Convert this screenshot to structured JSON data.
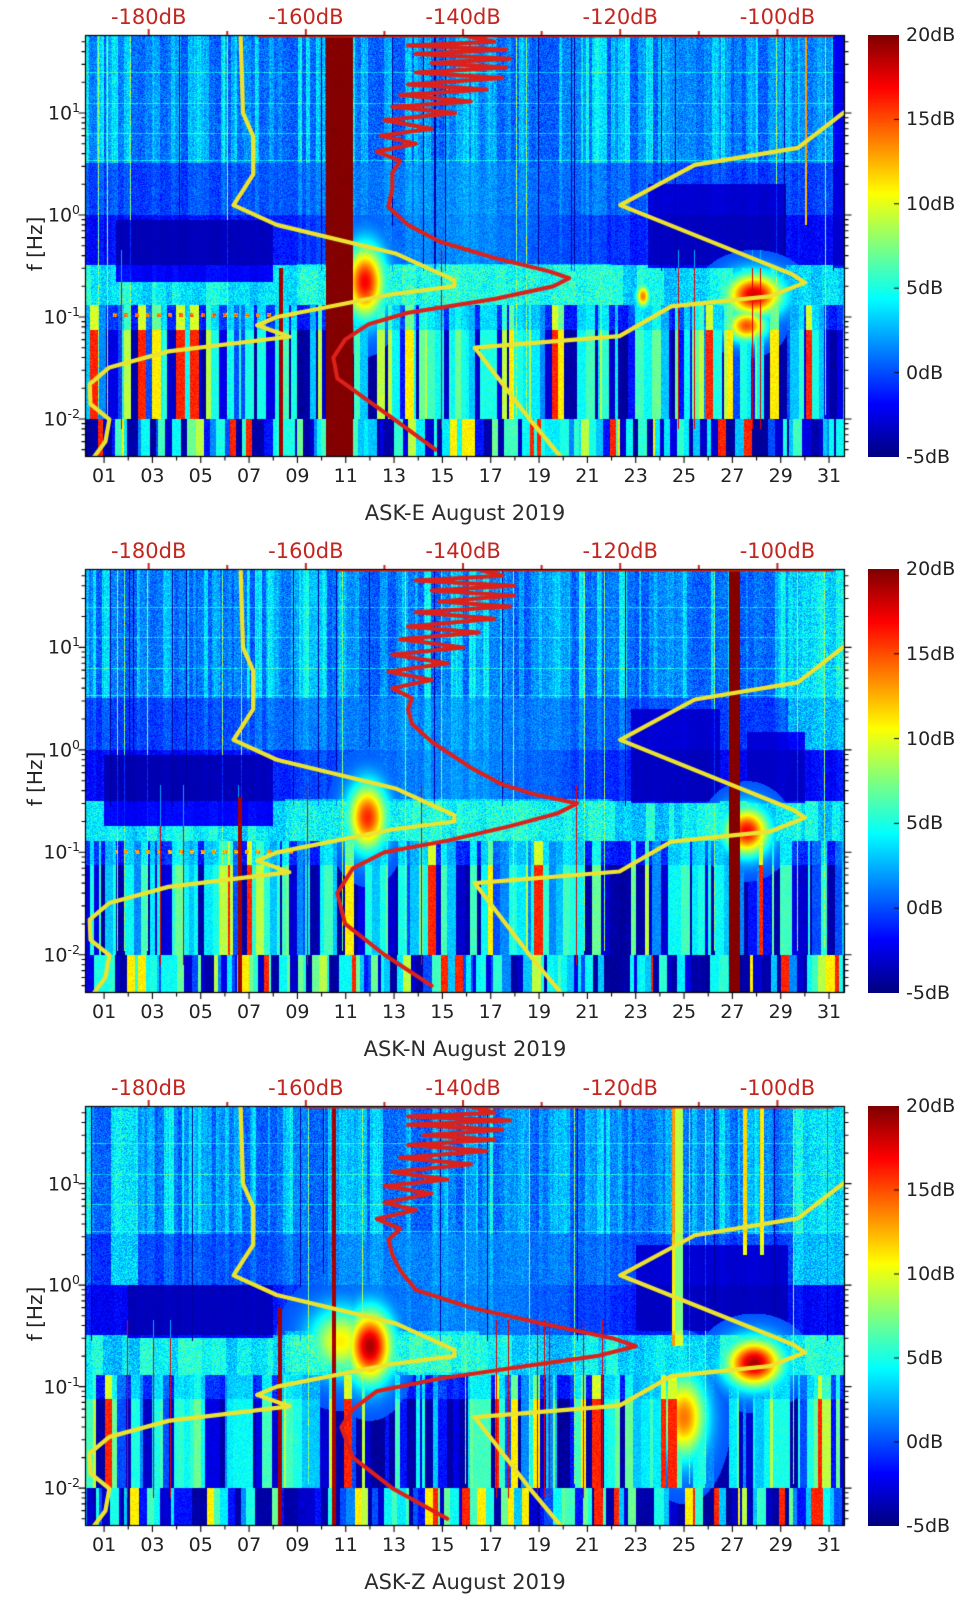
{
  "chart_data": {
    "type": "heatmap",
    "description": "Three seismic PSD spectrograms (spectrogram of power relative to noise model, jet colormap) for station channels ASK-E, ASK-N, ASK-Z during August 2019, with Peterson NLNM/NHNM reference noise models (yellow) and station mode spectrum (red) plotted against a secondary red dB axis on top.",
    "x_axis": {
      "tick_labels": [
        "01",
        "03",
        "05",
        "07",
        "09",
        "11",
        "13",
        "15",
        "17",
        "19",
        "21",
        "23",
        "25",
        "27",
        "29",
        "31"
      ],
      "tick_days": [
        1,
        3,
        5,
        7,
        9,
        11,
        13,
        15,
        17,
        19,
        21,
        23,
        25,
        27,
        29,
        31
      ],
      "range_days": [
        0.21,
        31.66
      ]
    },
    "y_axis": {
      "label": "f [Hz]",
      "decades": [
        {
          "mant": "10",
          "exp": "1",
          "e": 1
        },
        {
          "mant": "10",
          "exp": "0",
          "e": 0
        },
        {
          "mant": "10",
          "exp": "-1",
          "e": -1
        },
        {
          "mant": "10",
          "exp": "-2",
          "e": -2
        }
      ],
      "log_range": [
        -2.373,
        1.765
      ]
    },
    "top_axis": {
      "labels": [
        "-180dB",
        "-160dB",
        "-140dB",
        "-120dB",
        "-100dB"
      ],
      "values": [
        -180,
        -160,
        -140,
        -120,
        -100
      ],
      "minor_step": 10,
      "range_db": [
        -188.1,
        -91.4
      ],
      "color": "#c3261f"
    },
    "colorbar": {
      "labels": [
        "20dB",
        "15dB",
        "10dB",
        "5dB",
        "0dB",
        "-5dB"
      ],
      "values": [
        20,
        15,
        10,
        5,
        0,
        -5
      ],
      "range": [
        -5,
        20
      ],
      "colormap": "jet",
      "top_color": "#800000",
      "bottom_color": "#000080"
    },
    "overlays": {
      "yellow_color": "#ece32f",
      "red_color": "#de201a",
      "nlnm_low_noise_model_f_db": [
        [
          58,
          -168.3
        ],
        [
          10,
          -168
        ],
        [
          5.9,
          -166.7
        ],
        [
          2.5,
          -166.7
        ],
        [
          1.25,
          -169.2
        ],
        [
          0.8,
          -163.7
        ],
        [
          0.42,
          -148.6
        ],
        [
          0.23,
          -141.1
        ],
        [
          0.2,
          -141.1
        ],
        [
          0.167,
          -149
        ],
        [
          0.1,
          -163.7
        ],
        [
          0.083,
          -166.2
        ],
        [
          0.064,
          -162.1
        ],
        [
          0.046,
          -177.5
        ],
        [
          0.032,
          -185
        ],
        [
          0.022,
          -187.5
        ],
        [
          0.014,
          -187.4
        ],
        [
          0.0099,
          -185
        ],
        [
          0.006,
          -185.5
        ],
        [
          0.0042,
          -187
        ]
      ],
      "nhnm_high_noise_model_f_db": [
        [
          10.2,
          -91.5
        ],
        [
          4.55,
          -97.4
        ],
        [
          3.1,
          -110.5
        ],
        [
          1.25,
          -120
        ],
        [
          0.26,
          -98
        ],
        [
          0.217,
          -96.5
        ],
        [
          0.159,
          -101
        ],
        [
          0.127,
          -113.5
        ],
        [
          0.065,
          -120.1
        ],
        [
          0.05,
          -138.5
        ],
        [
          0.0099,
          -131.5
        ],
        [
          0.0042,
          -127.5
        ]
      ]
    },
    "panels": [
      {
        "title": "ASK-E August 2019",
        "seed": 1101,
        "red_mode_spectrum_f_db": [
          [
            57.5,
            -93
          ],
          [
            57.5,
            -166
          ],
          [
            57.5,
            -140
          ],
          [
            50,
            -136
          ],
          [
            46,
            -147
          ],
          [
            42,
            -134.5
          ],
          [
            38,
            -146
          ],
          [
            34,
            -134
          ],
          [
            31,
            -144
          ],
          [
            28,
            -134.5
          ],
          [
            25,
            -146
          ],
          [
            22,
            -135
          ],
          [
            19,
            -147
          ],
          [
            17,
            -137
          ],
          [
            15,
            -148
          ],
          [
            13,
            -139
          ],
          [
            11.5,
            -149
          ],
          [
            10,
            -141
          ],
          [
            8.5,
            -150
          ],
          [
            7,
            -144
          ],
          [
            6,
            -150.5
          ],
          [
            5,
            -146
          ],
          [
            4.2,
            -151
          ],
          [
            3.4,
            -148
          ],
          [
            2.6,
            -149
          ],
          [
            1.8,
            -149
          ],
          [
            1.2,
            -149.5
          ],
          [
            0.8,
            -147
          ],
          [
            0.55,
            -143
          ],
          [
            0.38,
            -136
          ],
          [
            0.28,
            -129
          ],
          [
            0.24,
            -126.5
          ],
          [
            0.2,
            -128.5
          ],
          [
            0.15,
            -136
          ],
          [
            0.11,
            -147
          ],
          [
            0.085,
            -152
          ],
          [
            0.06,
            -155
          ],
          [
            0.04,
            -156.5
          ],
          [
            0.025,
            -156
          ],
          [
            0.015,
            -152
          ],
          [
            0.009,
            -148
          ],
          [
            0.005,
            -143.5
          ]
        ],
        "features": [
          {
            "type": "bright",
            "d0": 9,
            "d1": 22,
            "f0": 0.13,
            "f1": 0.33,
            "v": 6
          },
          {
            "type": "dark",
            "d0": 1.5,
            "d1": 8,
            "f0": 0.22,
            "f1": 0.9,
            "v": -4.4
          },
          {
            "type": "dark",
            "d0": 23.5,
            "d1": 29.2,
            "f0": 0.3,
            "f1": 2,
            "v": -4.2
          },
          {
            "type": "dark",
            "d0": 31.2,
            "d1": 31.66,
            "f0": 0.3,
            "f1": 58,
            "v": -3.5
          },
          {
            "type": "dotrow",
            "f": 0.105,
            "d0": 1.2,
            "d1": 9,
            "v": 14
          },
          {
            "type": "blob",
            "d": 11.8,
            "f": 0.22,
            "rd": 0.7,
            "rf": 0.3,
            "v": 17
          },
          {
            "type": "blob",
            "d": 23.3,
            "f": 0.16,
            "rd": 0.25,
            "rf": 0.1,
            "v": 14
          },
          {
            "type": "blob",
            "d": 27.9,
            "f": 0.165,
            "rd": 1.0,
            "rf": 0.18,
            "v": 18
          },
          {
            "type": "blob",
            "d": 27.6,
            "f": 0.082,
            "rd": 0.7,
            "rf": 0.13,
            "v": 15
          },
          {
            "type": "band",
            "d0": 8.25,
            "d1": 8.4,
            "f0": 0.0042,
            "f1": 0.3,
            "v": 19
          },
          {
            "type": "band",
            "d0": 30.0,
            "d1": 30.1,
            "f0": 0.8,
            "f1": 58,
            "v": 18
          },
          {
            "type": "band",
            "d0": 10.2,
            "d1": 11.3,
            "f0": 0.0042,
            "f1": 58,
            "v": 20
          }
        ]
      },
      {
        "title": "ASK-N August 2019",
        "seed": 2202,
        "red_mode_spectrum_f_db": [
          [
            57.5,
            -93
          ],
          [
            57.5,
            -156
          ],
          [
            57.5,
            -138
          ],
          [
            50,
            -135
          ],
          [
            45,
            -146
          ],
          [
            40,
            -133.5
          ],
          [
            36,
            -144
          ],
          [
            32,
            -133.5
          ],
          [
            28,
            -143
          ],
          [
            25,
            -134
          ],
          [
            22,
            -146
          ],
          [
            19,
            -136
          ],
          [
            16,
            -147
          ],
          [
            14,
            -138
          ],
          [
            12,
            -148
          ],
          [
            10,
            -140
          ],
          [
            8.5,
            -149
          ],
          [
            7,
            -142
          ],
          [
            5.8,
            -149.5
          ],
          [
            4.8,
            -144
          ],
          [
            4,
            -149
          ],
          [
            3.2,
            -146.5
          ],
          [
            2.5,
            -147
          ],
          [
            1.8,
            -146.5
          ],
          [
            1.2,
            -144
          ],
          [
            0.67,
            -139
          ],
          [
            0.46,
            -135
          ],
          [
            0.37,
            -131
          ],
          [
            0.3,
            -125.5
          ],
          [
            0.24,
            -128
          ],
          [
            0.18,
            -134
          ],
          [
            0.13,
            -142
          ],
          [
            0.1,
            -150
          ],
          [
            0.07,
            -154
          ],
          [
            0.04,
            -156
          ],
          [
            0.02,
            -155
          ],
          [
            0.01,
            -150
          ],
          [
            0.005,
            -144
          ]
        ],
        "features": [
          {
            "type": "bright",
            "d0": 8.5,
            "d1": 22,
            "f0": 0.13,
            "f1": 0.33,
            "v": 5.5
          },
          {
            "type": "bright",
            "d0": 29.3,
            "d1": 31.66,
            "f0": 1,
            "f1": 58,
            "v": 5.5
          },
          {
            "type": "dark",
            "d0": 1,
            "d1": 8,
            "f0": 0.18,
            "f1": 0.9,
            "v": -4.5
          },
          {
            "type": "dark",
            "d0": 22.8,
            "d1": 26.5,
            "f0": 0.3,
            "f1": 2.5,
            "v": -4.2
          },
          {
            "type": "dark",
            "d0": 27.6,
            "d1": 30,
            "f0": 0.3,
            "f1": 1.5,
            "v": -3.8
          },
          {
            "type": "dotrow",
            "f": 0.1,
            "d0": 1.5,
            "d1": 9,
            "v": 13
          },
          {
            "type": "blob",
            "d": 11.9,
            "f": 0.22,
            "rd": 0.7,
            "rf": 0.28,
            "v": 16
          },
          {
            "type": "blob",
            "d": 27.6,
            "f": 0.16,
            "rd": 0.8,
            "rf": 0.2,
            "v": 17
          },
          {
            "type": "band",
            "d0": 6.55,
            "d1": 6.7,
            "f0": 0.0042,
            "f1": 0.35,
            "v": 19
          },
          {
            "type": "band",
            "d0": 26.85,
            "d1": 27.3,
            "f0": 0.0042,
            "f1": 58,
            "v": 20
          }
        ]
      },
      {
        "title": "ASK-Z August 2019",
        "seed": 3303,
        "red_mode_spectrum_f_db": [
          [
            57.5,
            -93
          ],
          [
            57.5,
            -160
          ],
          [
            57.5,
            -139
          ],
          [
            50,
            -136
          ],
          [
            46,
            -147
          ],
          [
            42,
            -134
          ],
          [
            38,
            -147
          ],
          [
            34,
            -135
          ],
          [
            30,
            -145
          ],
          [
            27,
            -136
          ],
          [
            24,
            -147
          ],
          [
            21,
            -137
          ],
          [
            18,
            -148
          ],
          [
            15.5,
            -139
          ],
          [
            13,
            -149
          ],
          [
            11,
            -142
          ],
          [
            9.5,
            -150
          ],
          [
            8,
            -144
          ],
          [
            6.5,
            -150
          ],
          [
            5.5,
            -146
          ],
          [
            4.5,
            -151
          ],
          [
            3.6,
            -148
          ],
          [
            2.8,
            -149.5
          ],
          [
            2,
            -149
          ],
          [
            1.4,
            -148
          ],
          [
            0.9,
            -146
          ],
          [
            0.6,
            -139
          ],
          [
            0.42,
            -130
          ],
          [
            0.3,
            -121
          ],
          [
            0.25,
            -118
          ],
          [
            0.2,
            -123
          ],
          [
            0.16,
            -132
          ],
          [
            0.12,
            -143
          ],
          [
            0.09,
            -151
          ],
          [
            0.06,
            -154
          ],
          [
            0.04,
            -155.5
          ],
          [
            0.02,
            -154
          ],
          [
            0.01,
            -149
          ],
          [
            0.005,
            -142
          ]
        ],
        "features": [
          {
            "type": "bright",
            "d0": 8.5,
            "d1": 16.5,
            "f0": 0.14,
            "f1": 0.35,
            "v": 6.5
          },
          {
            "type": "bright",
            "d0": 29.5,
            "d1": 31.66,
            "f0": 1,
            "f1": 58,
            "v": 6
          },
          {
            "type": "bright",
            "d0": 1.3,
            "d1": 2.4,
            "f0": 1,
            "f1": 58,
            "v": 7
          },
          {
            "type": "dark",
            "d0": 2,
            "d1": 8,
            "f0": 0.3,
            "f1": 1,
            "v": -4.3
          },
          {
            "type": "dark",
            "d0": 23,
            "d1": 29.3,
            "f0": 0.35,
            "f1": 2.5,
            "v": -4.2
          },
          {
            "type": "blob",
            "d": 10.8,
            "f": 0.28,
            "rd": 1.1,
            "rf": 0.28,
            "v": 11
          },
          {
            "type": "blob",
            "d": 12,
            "f": 0.25,
            "rd": 0.8,
            "rf": 0.3,
            "v": 19
          },
          {
            "type": "blob",
            "d": 27.9,
            "f": 0.17,
            "rd": 1.0,
            "rf": 0.2,
            "v": 19
          },
          {
            "type": "blob",
            "d": 25,
            "f": 0.05,
            "rd": 0.8,
            "rf": 0.35,
            "v": 14
          },
          {
            "type": "band",
            "d0": 8.2,
            "d1": 8.35,
            "f0": 0.0042,
            "f1": 0.6,
            "v": 19
          },
          {
            "type": "band",
            "d0": 27.45,
            "d1": 27.6,
            "f0": 2,
            "f1": 58,
            "v": 16
          },
          {
            "type": "band",
            "d0": 28.15,
            "d1": 28.3,
            "f0": 2,
            "f1": 58,
            "v": 15
          },
          {
            "type": "band",
            "d0": 24.5,
            "d1": 24.62,
            "f0": 0.25,
            "f1": 58,
            "v": 17
          },
          {
            "type": "band",
            "d0": 24.62,
            "d1": 24.95,
            "f0": 0.25,
            "f1": 58,
            "v": 12
          },
          {
            "type": "band",
            "d0": 10.45,
            "d1": 10.6,
            "f0": 0.0042,
            "f1": 58,
            "v": 19
          }
        ]
      }
    ]
  }
}
